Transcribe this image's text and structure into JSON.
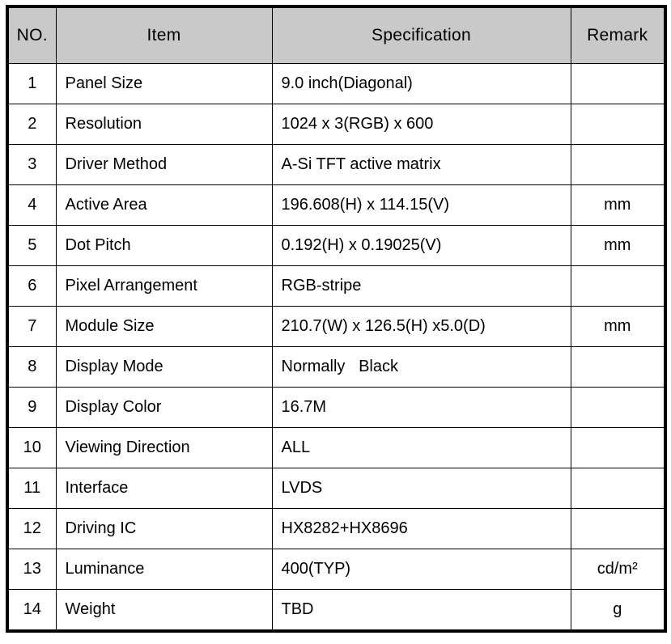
{
  "table": {
    "columns": [
      "NO.",
      "Item",
      "Specification",
      "Remark"
    ],
    "rows": [
      {
        "no": "1",
        "item": "Panel Size",
        "spec": "9.0 inch(Diagonal)",
        "remark": ""
      },
      {
        "no": "2",
        "item": "Resolution",
        "spec": "1024 x 3(RGB) x 600",
        "remark": ""
      },
      {
        "no": "3",
        "item": "Driver Method",
        "spec": "A-Si TFT active matrix",
        "remark": ""
      },
      {
        "no": "4",
        "item": "Active Area",
        "spec": "196.608(H) x 114.15(V)",
        "remark": "mm"
      },
      {
        "no": "5",
        "item": "Dot Pitch",
        "spec": "0.192(H) x 0.19025(V)",
        "remark": "mm"
      },
      {
        "no": "6",
        "item": "Pixel Arrangement",
        "spec": "RGB-stripe",
        "remark": ""
      },
      {
        "no": "7",
        "item": "Module Size",
        "spec": "210.7(W) x 126.5(H) x5.0(D)",
        "remark": "mm"
      },
      {
        "no": "8",
        "item": "Display Mode",
        "spec": "Normally   Black",
        "remark": ""
      },
      {
        "no": "9",
        "item": "Display Color",
        "spec": "16.7M",
        "remark": ""
      },
      {
        "no": "10",
        "item": "Viewing Direction",
        "spec": "ALL",
        "remark": ""
      },
      {
        "no": "11",
        "item": "Interface",
        "spec": "LVDS",
        "remark": ""
      },
      {
        "no": "12",
        "item": "Driving IC",
        "spec": "HX8282+HX8696",
        "remark": ""
      },
      {
        "no": "13",
        "item": "Luminance",
        "spec": "400(TYP)",
        "remark": "cd/m²"
      },
      {
        "no": "14",
        "item": "Weight",
        "spec": "TBD",
        "remark": "g"
      }
    ]
  },
  "colors": {
    "header_background": "#c9c9c9",
    "border": "#000000",
    "page_background": "#ffffff"
  }
}
